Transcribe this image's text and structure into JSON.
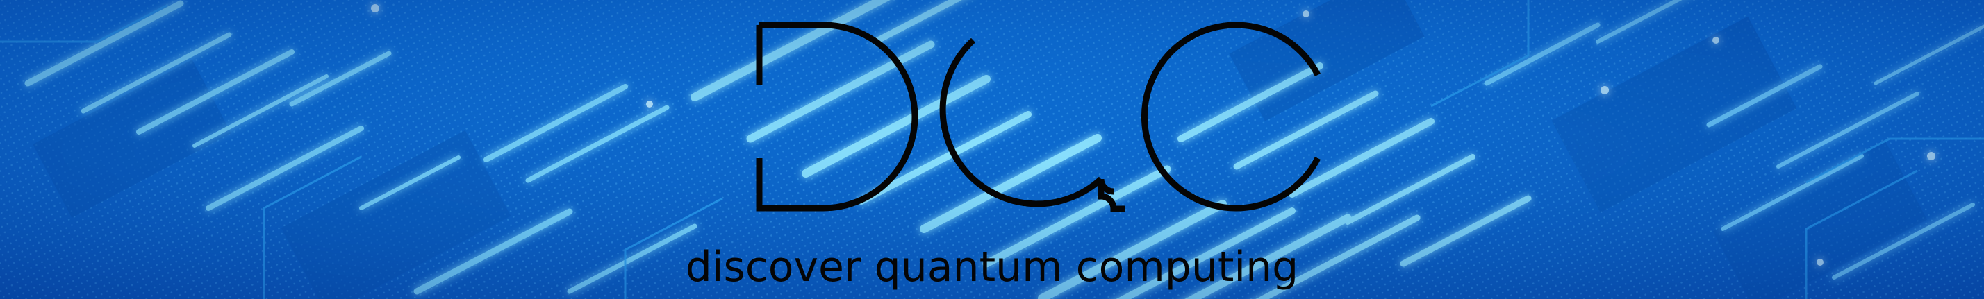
{
  "banner": {
    "logo_letters": "DQC",
    "tagline": "discover quantum computing"
  },
  "colors": {
    "background_blue": "#0a63c4",
    "glow_cyan": "#8ee8ff",
    "trace_blue": "#3fb6f2",
    "logo_black": "#050505"
  },
  "icons": {
    "logo": "dqc-logo-icon",
    "background": "quantum-chip-circuit-image"
  }
}
